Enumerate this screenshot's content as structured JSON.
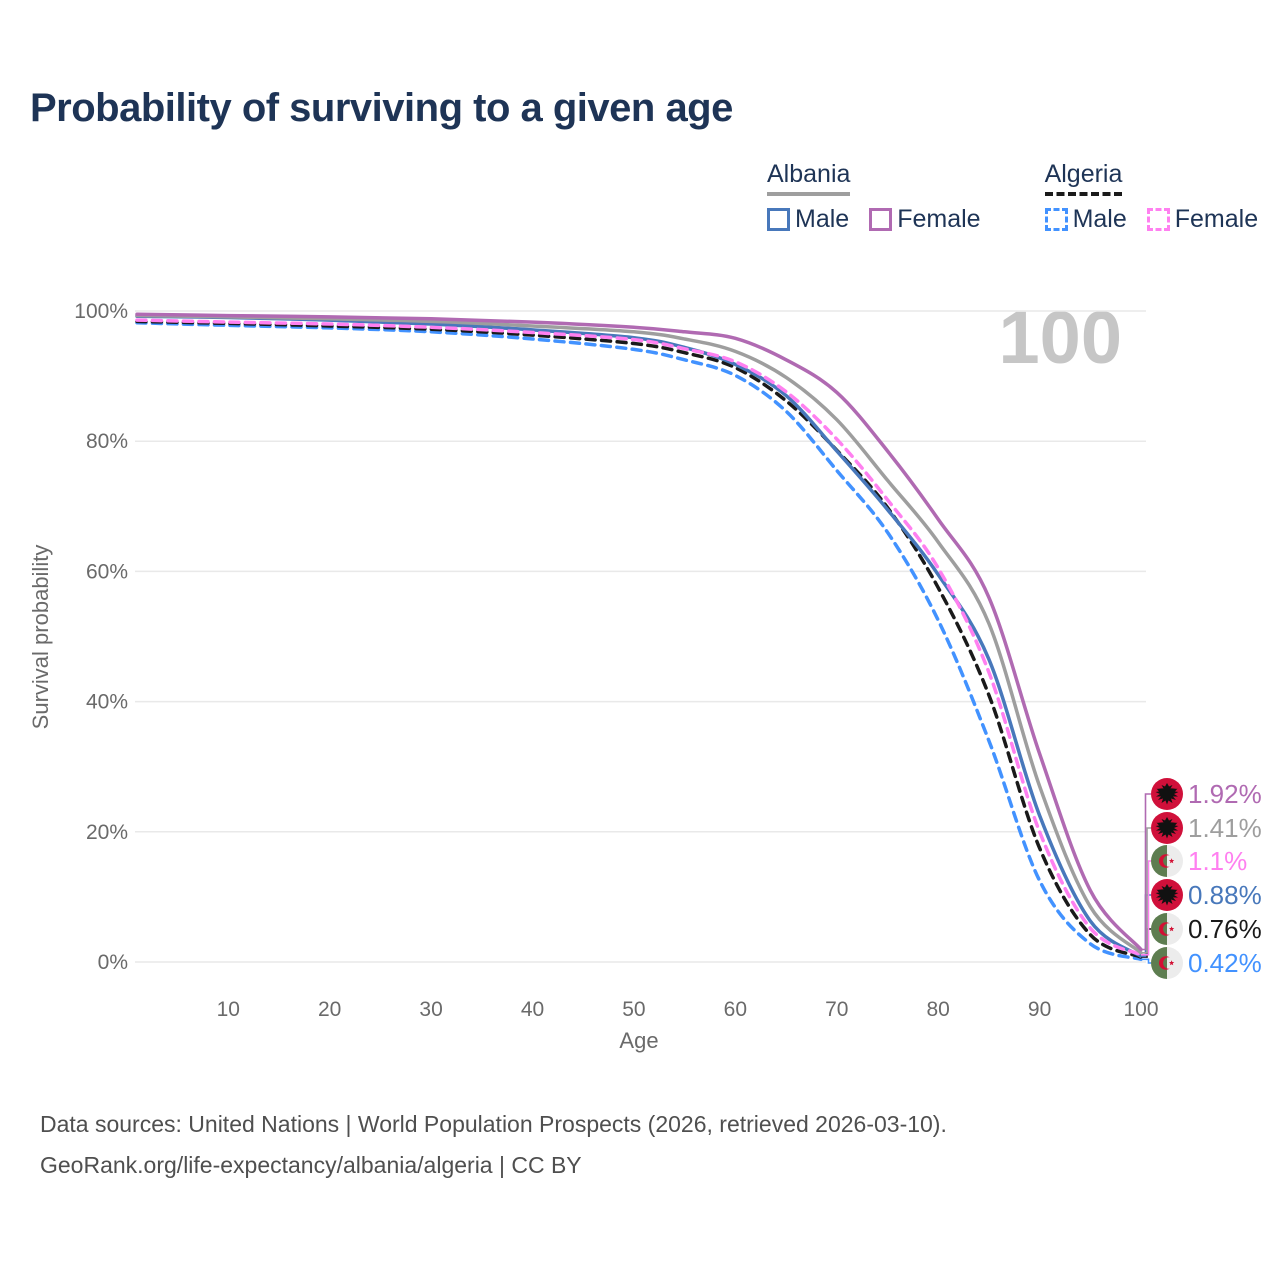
{
  "title": "Probability of surviving to a given age",
  "watermark": "100",
  "colors": {
    "albania_male": "#4878bb",
    "albania_female": "#b06ab2",
    "albania_both": "#9e9e9e",
    "algeria_male": "#4292ff",
    "algeria_female": "#ff80f0",
    "algeria_both": "#1a1a1a",
    "grid": "#e9e9e9",
    "tick_text": "#6a6a6a",
    "title_text": "#1e3456"
  },
  "legend": {
    "groups": [
      {
        "id": "albania",
        "title": "Albania",
        "underline_style": "solid",
        "underline_color": "#9e9e9e",
        "items": [
          {
            "id": "albania-male",
            "label": "Male",
            "color": "#4878bb",
            "dashed": false
          },
          {
            "id": "albania-female",
            "label": "Female",
            "color": "#b06ab2",
            "dashed": false
          }
        ]
      },
      {
        "id": "algeria",
        "title": "Algeria",
        "underline_style": "dashed",
        "underline_color": "#1a1a1a",
        "items": [
          {
            "id": "algeria-male",
            "label": "Male",
            "color": "#4292ff",
            "dashed": true
          },
          {
            "id": "algeria-female",
            "label": "Female",
            "color": "#ff80f0",
            "dashed": true
          }
        ]
      }
    ]
  },
  "chart_data": {
    "type": "line",
    "title": "Probability of surviving to a given age",
    "xlabel": "Age",
    "ylabel": "Survival probability",
    "xlim": [
      1,
      100
    ],
    "ylim": [
      0,
      100
    ],
    "grid": "horizontal-only",
    "legend_position": "top-right",
    "yticks": [
      {
        "v": 0,
        "label": "0%"
      },
      {
        "v": 20,
        "label": "20%"
      },
      {
        "v": 40,
        "label": "40%"
      },
      {
        "v": 60,
        "label": "60%"
      },
      {
        "v": 80,
        "label": "80%"
      },
      {
        "v": 100,
        "label": "100%"
      }
    ],
    "xticks": [
      {
        "v": 10,
        "label": "10"
      },
      {
        "v": 20,
        "label": "20"
      },
      {
        "v": 30,
        "label": "30"
      },
      {
        "v": 40,
        "label": "40"
      },
      {
        "v": 50,
        "label": "50"
      },
      {
        "v": 60,
        "label": "60"
      },
      {
        "v": 70,
        "label": "70"
      },
      {
        "v": 80,
        "label": "80"
      },
      {
        "v": 90,
        "label": "90"
      },
      {
        "v": 100,
        "label": "100"
      }
    ],
    "x": [
      1,
      10,
      20,
      30,
      40,
      50,
      55,
      60,
      65,
      70,
      75,
      80,
      85,
      90,
      95,
      100
    ],
    "series": [
      {
        "id": "algeria-male",
        "name": "Algeria Male",
        "country": "algeria",
        "color": "#4292ff",
        "dashed": true,
        "row": 5,
        "values": [
          98.2,
          97.8,
          97.4,
          96.8,
          95.7,
          94.1,
          92.5,
          90.1,
          84.6,
          75.5,
          66.0,
          52.5,
          34.0,
          12.5,
          2.8,
          0.42
        ],
        "end_label": "0.42%"
      },
      {
        "id": "algeria-both",
        "name": "Algeria",
        "country": "algeria",
        "color": "#1a1a1a",
        "dashed": true,
        "row": 4,
        "values": [
          98.4,
          98.1,
          97.7,
          97.2,
          96.3,
          95.0,
          93.6,
          91.3,
          86.2,
          78.6,
          69.8,
          57.5,
          41.0,
          17.5,
          4.2,
          0.76
        ],
        "end_label": "0.76%"
      },
      {
        "id": "albania-male",
        "name": "Albania Male",
        "country": "albania",
        "color": "#4878bb",
        "dashed": false,
        "row": 3,
        "values": [
          99.2,
          99.0,
          98.6,
          98.0,
          97.1,
          95.9,
          94.4,
          91.8,
          87.0,
          78.5,
          69.5,
          59.5,
          46.5,
          22.5,
          6.3,
          0.88
        ],
        "end_label": "0.88%"
      },
      {
        "id": "algeria-female",
        "name": "Algeria Female",
        "country": "algeria",
        "color": "#ff80f0",
        "dashed": true,
        "row": 2,
        "values": [
          98.6,
          98.3,
          98.0,
          97.5,
          96.7,
          95.6,
          94.2,
          92.2,
          87.6,
          80.3,
          71.0,
          60.5,
          44.5,
          20.0,
          5.2,
          1.1
        ],
        "end_label": "1.1%"
      },
      {
        "id": "albania-both",
        "name": "Albania",
        "country": "albania",
        "color": "#9e9e9e",
        "dashed": false,
        "row": 1,
        "values": [
          99.3,
          99.1,
          98.8,
          98.4,
          97.7,
          96.8,
          95.7,
          93.8,
          89.8,
          83.3,
          74.0,
          64.5,
          52.0,
          27.0,
          8.5,
          1.41
        ],
        "end_label": "1.41%"
      },
      {
        "id": "albania-female",
        "name": "Albania Female",
        "country": "albania",
        "color": "#b06ab2",
        "dashed": false,
        "row": 0,
        "values": [
          99.5,
          99.3,
          99.1,
          98.8,
          98.3,
          97.5,
          96.8,
          95.8,
          92.5,
          87.5,
          78.5,
          68.0,
          56.0,
          32.0,
          11.0,
          1.92
        ],
        "end_label": "1.92%"
      }
    ]
  },
  "footer": {
    "line1": "Data sources: United Nations | World Population Prospects (2026, retrieved 2026-03-10).",
    "line2": "GeoRank.org/life-expectancy/albania/algeria | CC BY"
  }
}
